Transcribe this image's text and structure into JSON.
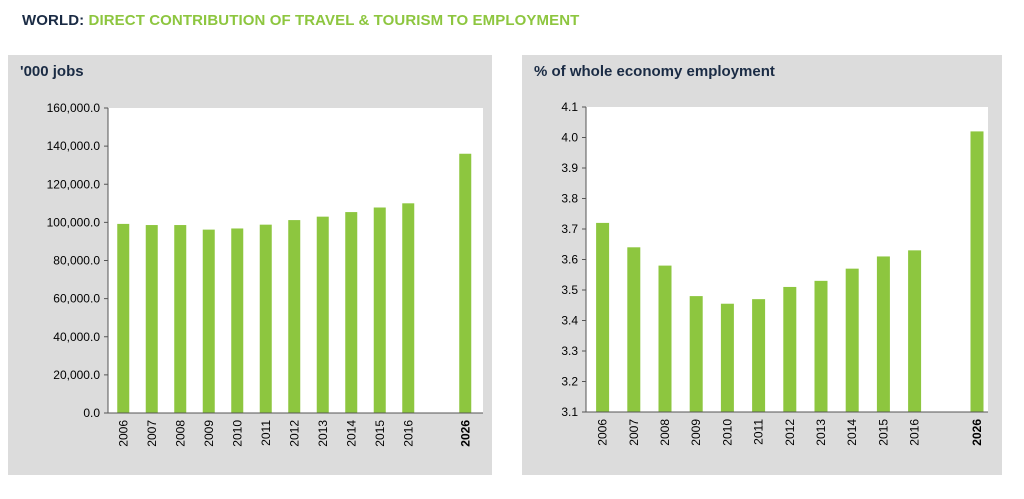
{
  "header": {
    "prefix": "WORLD:",
    "title": "DIRECT CONTRIBUTION OF  TRAVEL & TOURISM TO EMPLOYMENT"
  },
  "colors": {
    "bar": "#8dc63f",
    "title_prefix": "#1a2b44",
    "title_main": "#8dc63f",
    "panel_bg": "#dcdcdc",
    "plot_bg": "#ffffff"
  },
  "chart_data": [
    {
      "type": "bar",
      "title": "'000 jobs",
      "categories": [
        "2006",
        "2007",
        "2008",
        "2009",
        "2010",
        "2011",
        "2012",
        "2013",
        "2014",
        "2015",
        "2016",
        "2026"
      ],
      "values": [
        99200,
        98600,
        98600,
        96200,
        96800,
        98800,
        101200,
        103000,
        105400,
        107800,
        110000,
        136000
      ],
      "yticks": [
        "0.0",
        "20,000.0",
        "40,000.0",
        "60,000.0",
        "80,000.0",
        "100,000.0",
        "120,000.0",
        "140,000.0",
        "160,000.0"
      ],
      "ylim": [
        0,
        160000
      ],
      "grid": false,
      "bold_category": "2026"
    },
    {
      "type": "bar",
      "title": "% of whole economy employment",
      "categories": [
        "2006",
        "2007",
        "2008",
        "2009",
        "2010",
        "2011",
        "2012",
        "2013",
        "2014",
        "2015",
        "2016",
        "2026"
      ],
      "values": [
        3.72,
        3.64,
        3.58,
        3.48,
        3.455,
        3.47,
        3.51,
        3.53,
        3.57,
        3.61,
        3.63,
        4.02
      ],
      "yticks": [
        "3.1",
        "3.2",
        "3.3",
        "3.4",
        "3.5",
        "3.6",
        "3.7",
        "3.8",
        "3.9",
        "4.0",
        "4.1"
      ],
      "ylim": [
        3.1,
        4.1
      ],
      "grid": false,
      "bold_category": "2026"
    }
  ]
}
